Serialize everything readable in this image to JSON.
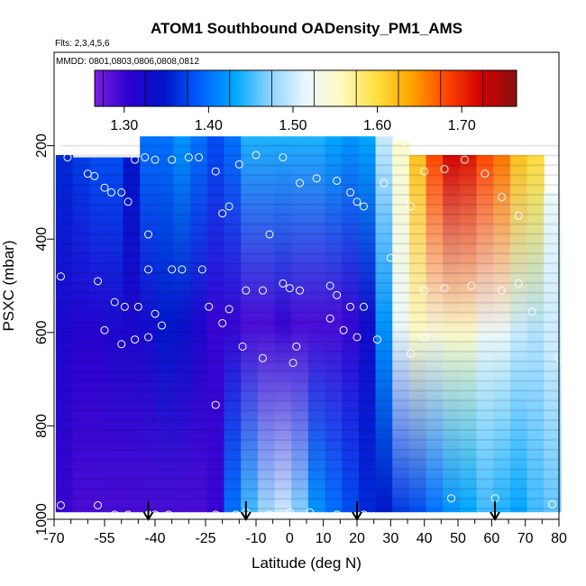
{
  "chart_data": {
    "type": "heatmap",
    "title": "ATOM1 Southbound OADensity_PM1_AMS",
    "flights_note": "Flts: 2,3,4,5,6",
    "dates_note": "MMDD: 0801,0803,0806,0808,0812",
    "xlabel": "Latitude (deg N)",
    "ylabel": "PSXC (mbar)",
    "xlim": [
      -70,
      80
    ],
    "ylim": [
      1000,
      0
    ],
    "x_ticks": [
      -70,
      -55,
      -40,
      -25,
      -10,
      0,
      10,
      20,
      30,
      40,
      50,
      60,
      70,
      80
    ],
    "x_tick_labels": [
      "-70",
      "-55",
      "-40",
      "-25",
      "-10",
      "0",
      "10",
      "20",
      "30",
      "40",
      "50",
      "60",
      "70",
      "80"
    ],
    "x_minor_ticks": [
      -65,
      -60,
      -50,
      -45,
      -35,
      -30,
      -20,
      -15,
      -5,
      5,
      15,
      25,
      35,
      45,
      55,
      65,
      75
    ],
    "y_ticks": [
      200,
      400,
      600,
      800,
      1000
    ],
    "y_tick_labels": [
      "200",
      "400",
      "600",
      "800",
      "1000"
    ],
    "colorbar": {
      "min": 1.265,
      "max": 1.765,
      "ticks": [
        1.3,
        1.4,
        1.5,
        1.6,
        1.7
      ],
      "tick_labels": [
        "1.30",
        "1.40",
        "1.50",
        "1.60",
        "1.70"
      ],
      "colors": [
        "#7a1fe0",
        "#2a00d0",
        "#0015c8",
        "#0060ff",
        "#00aaff",
        "#8fd3ff",
        "#e8f8ff",
        "#fffac0",
        "#ffe040",
        "#ffa500",
        "#ff4500",
        "#d00000",
        "#8b1010"
      ]
    },
    "arrow_latitudes": [
      -42,
      -13,
      20,
      61
    ],
    "columns": [
      {
        "lat": -67,
        "p_top": 220,
        "p_bot": 985,
        "top": 1.36,
        "mid": 1.32,
        "bot": 1.3
      },
      {
        "lat": -62,
        "p_top": 225,
        "p_bot": 985,
        "top": 1.37,
        "mid": 1.31,
        "bot": 1.29
      },
      {
        "lat": -57,
        "p_top": 225,
        "p_bot": 985,
        "top": 1.38,
        "mid": 1.31,
        "bot": 1.29
      },
      {
        "lat": -52,
        "p_top": 225,
        "p_bot": 985,
        "top": 1.38,
        "mid": 1.32,
        "bot": 1.29
      },
      {
        "lat": -47,
        "p_top": 225,
        "p_bot": 985,
        "top": 1.35,
        "mid": 1.32,
        "bot": 1.29
      },
      {
        "lat": -42,
        "p_top": 180,
        "p_bot": 985,
        "top": 1.4,
        "mid": 1.33,
        "bot": 1.29
      },
      {
        "lat": -37,
        "p_top": 180,
        "p_bot": 985,
        "top": 1.4,
        "mid": 1.35,
        "bot": 1.29
      },
      {
        "lat": -32,
        "p_top": 180,
        "p_bot": 985,
        "top": 1.42,
        "mid": 1.34,
        "bot": 1.29
      },
      {
        "lat": -27,
        "p_top": 180,
        "p_bot": 985,
        "top": 1.4,
        "mid": 1.32,
        "bot": 1.29
      },
      {
        "lat": -22,
        "p_top": 180,
        "p_bot": 985,
        "top": 1.38,
        "mid": 1.3,
        "bot": 1.3
      },
      {
        "lat": -17,
        "p_top": 180,
        "p_bot": 985,
        "top": 1.4,
        "mid": 1.3,
        "bot": 1.4
      },
      {
        "lat": -12,
        "p_top": 180,
        "p_bot": 985,
        "top": 1.44,
        "mid": 1.29,
        "bot": 1.45
      },
      {
        "lat": -7,
        "p_top": 180,
        "p_bot": 985,
        "top": 1.44,
        "mid": 1.29,
        "bot": 1.48
      },
      {
        "lat": -2,
        "p_top": 180,
        "p_bot": 985,
        "top": 1.44,
        "mid": 1.3,
        "bot": 1.5
      },
      {
        "lat": 3,
        "p_top": 180,
        "p_bot": 985,
        "top": 1.44,
        "mid": 1.29,
        "bot": 1.47
      },
      {
        "lat": 8,
        "p_top": 180,
        "p_bot": 985,
        "top": 1.44,
        "mid": 1.29,
        "bot": 1.42
      },
      {
        "lat": 13,
        "p_top": 180,
        "p_bot": 985,
        "top": 1.43,
        "mid": 1.29,
        "bot": 1.4
      },
      {
        "lat": 18,
        "p_top": 180,
        "p_bot": 985,
        "top": 1.42,
        "mid": 1.3,
        "bot": 1.38
      },
      {
        "lat": 23,
        "p_top": 180,
        "p_bot": 985,
        "top": 1.43,
        "mid": 1.33,
        "bot": 1.36
      },
      {
        "lat": 28,
        "p_top": 180,
        "p_bot": 985,
        "top": 1.5,
        "mid": 1.42,
        "bot": 1.35
      },
      {
        "lat": 33,
        "p_top": 190,
        "p_bot": 985,
        "top": 1.55,
        "mid": 1.52,
        "bot": 1.37
      },
      {
        "lat": 38,
        "p_top": 220,
        "p_bot": 985,
        "top": 1.62,
        "mid": 1.55,
        "bot": 1.38
      },
      {
        "lat": 43,
        "p_top": 220,
        "p_bot": 985,
        "top": 1.68,
        "mid": 1.54,
        "bot": 1.4
      },
      {
        "lat": 48,
        "p_top": 220,
        "p_bot": 985,
        "top": 1.72,
        "mid": 1.55,
        "bot": 1.42
      },
      {
        "lat": 53,
        "p_top": 220,
        "p_bot": 985,
        "top": 1.71,
        "mid": 1.55,
        "bot": 1.43
      },
      {
        "lat": 58,
        "p_top": 220,
        "p_bot": 985,
        "top": 1.68,
        "mid": 1.52,
        "bot": 1.45
      },
      {
        "lat": 63,
        "p_top": 220,
        "p_bot": 985,
        "top": 1.66,
        "mid": 1.52,
        "bot": 1.44
      },
      {
        "lat": 68,
        "p_top": 220,
        "p_bot": 985,
        "top": 1.62,
        "mid": 1.5,
        "bot": 1.43
      },
      {
        "lat": 73,
        "p_top": 220,
        "p_bot": 985,
        "top": 1.6,
        "mid": 1.49,
        "bot": 1.45
      },
      {
        "lat": 78,
        "p_top": 300,
        "p_bot": 985,
        "top": 1.52,
        "mid": 1.5,
        "bot": 1.46
      }
    ],
    "points": [
      [
        -66,
        225
      ],
      [
        -60,
        260
      ],
      [
        -58,
        265
      ],
      [
        -55,
        290
      ],
      [
        -53,
        300
      ],
      [
        -50,
        300
      ],
      [
        -48,
        320
      ],
      [
        -46,
        230
      ],
      [
        -43,
        225
      ],
      [
        -42,
        390
      ],
      [
        -40,
        230
      ],
      [
        -35,
        230
      ],
      [
        -30,
        225
      ],
      [
        -27,
        225
      ],
      [
        -22,
        255
      ],
      [
        -20,
        345
      ],
      [
        -18,
        330
      ],
      [
        -15,
        240
      ],
      [
        -10,
        220
      ],
      [
        -6,
        390
      ],
      [
        -2,
        225
      ],
      [
        3,
        280
      ],
      [
        8,
        270
      ],
      [
        14,
        275
      ],
      [
        18,
        300
      ],
      [
        20,
        320
      ],
      [
        22,
        330
      ],
      [
        28,
        280
      ],
      [
        34,
        190
      ],
      [
        36,
        330
      ],
      [
        40,
        255
      ],
      [
        46,
        250
      ],
      [
        52,
        230
      ],
      [
        58,
        260
      ],
      [
        63,
        310
      ],
      [
        68,
        350
      ],
      [
        -68,
        480
      ],
      [
        -57,
        490
      ],
      [
        -52,
        535
      ],
      [
        -49,
        545
      ],
      [
        -45,
        545
      ],
      [
        -42,
        465
      ],
      [
        -40,
        560
      ],
      [
        -35,
        465
      ],
      [
        -32,
        465
      ],
      [
        -26,
        465
      ],
      [
        -24,
        545
      ],
      [
        -18,
        550
      ],
      [
        -13,
        510
      ],
      [
        -8,
        510
      ],
      [
        -2,
        495
      ],
      [
        0,
        505
      ],
      [
        3,
        510
      ],
      [
        12,
        500
      ],
      [
        14,
        520
      ],
      [
        18,
        545
      ],
      [
        22,
        545
      ],
      [
        30,
        440
      ],
      [
        40,
        510
      ],
      [
        46,
        505
      ],
      [
        54,
        500
      ],
      [
        63,
        510
      ],
      [
        68,
        495
      ],
      [
        72,
        555
      ],
      [
        -55,
        595
      ],
      [
        -50,
        625
      ],
      [
        -46,
        615
      ],
      [
        -42,
        610
      ],
      [
        -38,
        585
      ],
      [
        -20,
        580
      ],
      [
        -14,
        630
      ],
      [
        -8,
        655
      ],
      [
        2,
        630
      ],
      [
        12,
        570
      ],
      [
        16,
        595
      ],
      [
        20,
        610
      ],
      [
        26,
        615
      ],
      [
        36,
        645
      ],
      [
        40,
        610
      ],
      [
        80,
        655
      ],
      [
        1,
        665
      ],
      [
        -22,
        755
      ],
      [
        -68,
        970
      ],
      [
        -57,
        970
      ],
      [
        -52,
        990
      ],
      [
        -48,
        990
      ],
      [
        -42,
        990
      ],
      [
        -40,
        990
      ],
      [
        -36,
        990
      ],
      [
        -30,
        995
      ],
      [
        -22,
        990
      ],
      [
        -16,
        990
      ],
      [
        -13,
        985
      ],
      [
        -6,
        990
      ],
      [
        0,
        985
      ],
      [
        6,
        985
      ],
      [
        14,
        990
      ],
      [
        18,
        995
      ],
      [
        22,
        990
      ],
      [
        30,
        1000
      ],
      [
        42,
        1005
      ],
      [
        48,
        955
      ],
      [
        61,
        955
      ],
      [
        78,
        968
      ]
    ]
  }
}
